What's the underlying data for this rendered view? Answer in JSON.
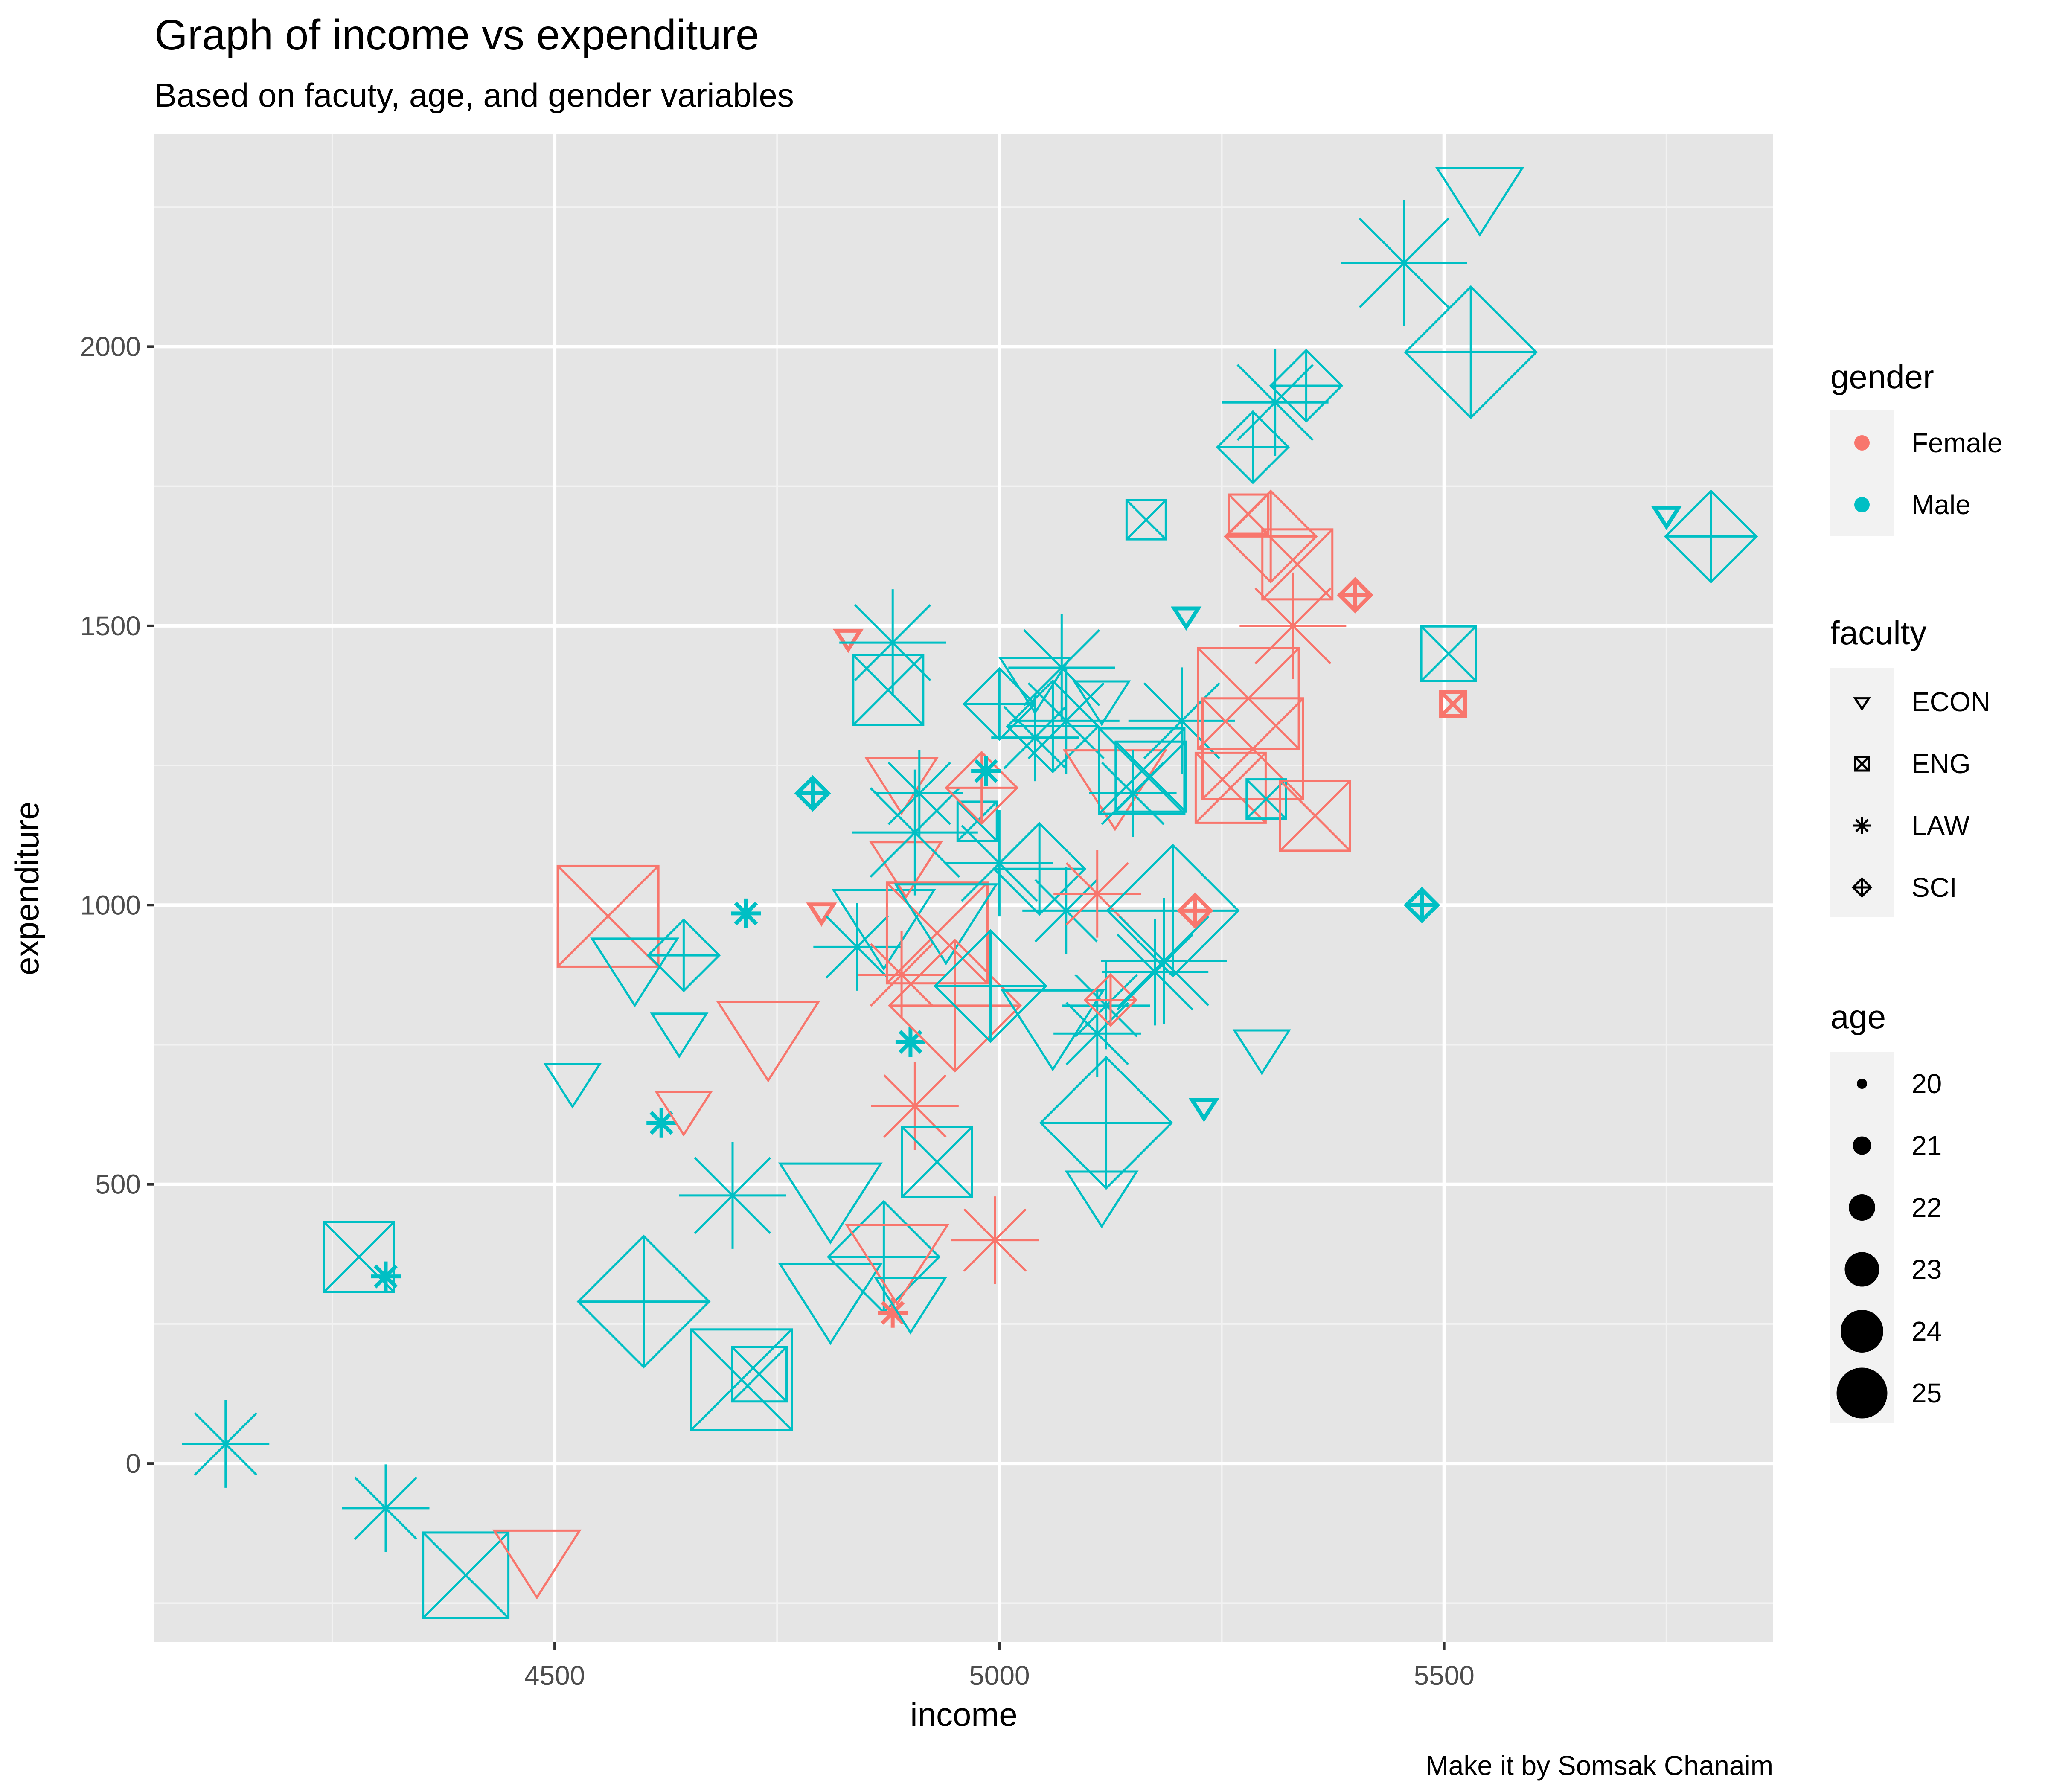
{
  "chart_data": {
    "type": "scatter",
    "title": "Graph of income vs expenditure",
    "subtitle": "Based on facuty, age, and gender variables",
    "xlabel": "income",
    "ylabel": "expenditure",
    "caption": "Make it by Somsak Chanaim",
    "xlim": [
      4050,
      5870
    ],
    "ylim": [
      -320,
      2380
    ],
    "xticks": [
      4500,
      5000,
      5500
    ],
    "yticks": [
      0,
      500,
      1000,
      1500,
      2000
    ],
    "grid": true,
    "legend_position": "right",
    "colors": {
      "Female": "#F8766D",
      "Male": "#00BFC4",
      "panel": "#E5E5E5",
      "gridMajor": "#FFFFFF",
      "gridMinor": "#F2F2F2"
    },
    "legends": {
      "gender": {
        "title": "gender",
        "items": [
          "Female",
          "Male"
        ]
      },
      "faculty": {
        "title": "faculty",
        "items": [
          "ECON",
          "ENG",
          "LAW",
          "SCI"
        ]
      },
      "age": {
        "title": "age",
        "items": [
          20,
          21,
          22,
          23,
          24,
          25
        ]
      }
    },
    "points": [
      {
        "x": 4130,
        "y": 35,
        "faculty": "LAW",
        "gender": "Male",
        "age": 23
      },
      {
        "x": 4310,
        "y": -80,
        "faculty": "LAW",
        "gender": "Male",
        "age": 23
      },
      {
        "x": 4310,
        "y": 335,
        "faculty": "LAW",
        "gender": "Male",
        "age": 20
      },
      {
        "x": 4280,
        "y": 370,
        "faculty": "ENG",
        "gender": "Male",
        "age": 23
      },
      {
        "x": 4400,
        "y": -200,
        "faculty": "ENG",
        "gender": "Male",
        "age": 24
      },
      {
        "x": 4480,
        "y": -160,
        "faculty": "ECON",
        "gender": "Female",
        "age": 24
      },
      {
        "x": 4520,
        "y": 690,
        "faculty": "ECON",
        "gender": "Male",
        "age": 22
      },
      {
        "x": 4560,
        "y": 980,
        "faculty": "ENG",
        "gender": "Female",
        "age": 25
      },
      {
        "x": 4590,
        "y": 900,
        "faculty": "ECON",
        "gender": "Male",
        "age": 24
      },
      {
        "x": 4600,
        "y": 290,
        "faculty": "SCI",
        "gender": "Male",
        "age": 25
      },
      {
        "x": 4620,
        "y": 610,
        "faculty": "LAW",
        "gender": "Male",
        "age": 20
      },
      {
        "x": 4640,
        "y": 780,
        "faculty": "ECON",
        "gender": "Male",
        "age": 22
      },
      {
        "x": 4645,
        "y": 640,
        "faculty": "ECON",
        "gender": "Female",
        "age": 22
      },
      {
        "x": 4645,
        "y": 910,
        "faculty": "SCI",
        "gender": "Male",
        "age": 22
      },
      {
        "x": 4700,
        "y": 480,
        "faculty": "LAW",
        "gender": "Male",
        "age": 24
      },
      {
        "x": 4710,
        "y": 150,
        "faculty": "ENG",
        "gender": "Male",
        "age": 25
      },
      {
        "x": 4715,
        "y": 985,
        "faculty": "LAW",
        "gender": "Male",
        "age": 20
      },
      {
        "x": 4730,
        "y": 160,
        "faculty": "ENG",
        "gender": "Male",
        "age": 22
      },
      {
        "x": 4740,
        "y": 780,
        "faculty": "ECON",
        "gender": "Female",
        "age": 25
      },
      {
        "x": 4790,
        "y": 1200,
        "faculty": "SCI",
        "gender": "Male",
        "age": 20
      },
      {
        "x": 4800,
        "y": 990,
        "faculty": "ECON",
        "gender": "Female",
        "age": 20
      },
      {
        "x": 4810,
        "y": 310,
        "faculty": "ECON",
        "gender": "Male",
        "age": 25
      },
      {
        "x": 4810,
        "y": 490,
        "faculty": "ECON",
        "gender": "Male",
        "age": 25
      },
      {
        "x": 4830,
        "y": 1480,
        "faculty": "ECON",
        "gender": "Female",
        "age": 20
      },
      {
        "x": 4840,
        "y": 925,
        "faculty": "LAW",
        "gender": "Male",
        "age": 23
      },
      {
        "x": 4870,
        "y": 980,
        "faculty": "ECON",
        "gender": "Male",
        "age": 25
      },
      {
        "x": 4870,
        "y": 370,
        "faculty": "SCI",
        "gender": "Male",
        "age": 24
      },
      {
        "x": 4875,
        "y": 1385,
        "faculty": "ENG",
        "gender": "Male",
        "age": 23
      },
      {
        "x": 4880,
        "y": 1470,
        "faculty": "LAW",
        "gender": "Male",
        "age": 24
      },
      {
        "x": 4880,
        "y": 270,
        "faculty": "LAW",
        "gender": "Female",
        "age": 20
      },
      {
        "x": 4885,
        "y": 380,
        "faculty": "ECON",
        "gender": "Female",
        "age": 25
      },
      {
        "x": 4890,
        "y": 875,
        "faculty": "LAW",
        "gender": "Female",
        "age": 23
      },
      {
        "x": 4890,
        "y": 1230,
        "faculty": "ECON",
        "gender": "Female",
        "age": 23
      },
      {
        "x": 4895,
        "y": 1080,
        "faculty": "ECON",
        "gender": "Female",
        "age": 23
      },
      {
        "x": 4900,
        "y": 300,
        "faculty": "ECON",
        "gender": "Male",
        "age": 23
      },
      {
        "x": 4900,
        "y": 755,
        "faculty": "LAW",
        "gender": "Male",
        "age": 20
      },
      {
        "x": 4905,
        "y": 1130,
        "faculty": "LAW",
        "gender": "Male",
        "age": 25
      },
      {
        "x": 4905,
        "y": 640,
        "faculty": "LAW",
        "gender": "Female",
        "age": 23
      },
      {
        "x": 4910,
        "y": 1200,
        "faculty": "LAW",
        "gender": "Male",
        "age": 23
      },
      {
        "x": 4930,
        "y": 540,
        "faculty": "ENG",
        "gender": "Male",
        "age": 23
      },
      {
        "x": 4930,
        "y": 950,
        "faculty": "ENG",
        "gender": "Female",
        "age": 25
      },
      {
        "x": 4940,
        "y": 990,
        "faculty": "ECON",
        "gender": "Male",
        "age": 25
      },
      {
        "x": 4950,
        "y": 820,
        "faculty": "SCI",
        "gender": "Female",
        "age": 25
      },
      {
        "x": 4975,
        "y": 1150,
        "faculty": "ENG",
        "gender": "Male",
        "age": 21
      },
      {
        "x": 4980,
        "y": 1210,
        "faculty": "SCI",
        "gender": "Female",
        "age": 22
      },
      {
        "x": 4985,
        "y": 1240,
        "faculty": "LAW",
        "gender": "Male",
        "age": 20
      },
      {
        "x": 4990,
        "y": 855,
        "faculty": "SCI",
        "gender": "Male",
        "age": 24
      },
      {
        "x": 4995,
        "y": 400,
        "faculty": "LAW",
        "gender": "Female",
        "age": 23
      },
      {
        "x": 5000,
        "y": 1360,
        "faculty": "SCI",
        "gender": "Male",
        "age": 22
      },
      {
        "x": 5000,
        "y": 1075,
        "faculty": "LAW",
        "gender": "Male",
        "age": 24
      },
      {
        "x": 5040,
        "y": 1410,
        "faculty": "ECON",
        "gender": "Male",
        "age": 23
      },
      {
        "x": 5040,
        "y": 1300,
        "faculty": "LAW",
        "gender": "Male",
        "age": 23
      },
      {
        "x": 5045,
        "y": 1065,
        "faculty": "SCI",
        "gender": "Male",
        "age": 23
      },
      {
        "x": 5060,
        "y": 1320,
        "faculty": "SCI",
        "gender": "Male",
        "age": 23
      },
      {
        "x": 5060,
        "y": 800,
        "faculty": "ECON",
        "gender": "Male",
        "age": 25
      },
      {
        "x": 5070,
        "y": 1425,
        "faculty": "LAW",
        "gender": "Male",
        "age": 24
      },
      {
        "x": 5075,
        "y": 1330,
        "faculty": "LAW",
        "gender": "Male",
        "age": 24
      },
      {
        "x": 5075,
        "y": 990,
        "faculty": "LAW",
        "gender": "Male",
        "age": 23
      },
      {
        "x": 5110,
        "y": 770,
        "faculty": "LAW",
        "gender": "Male",
        "age": 23
      },
      {
        "x": 5110,
        "y": 1020,
        "faculty": "LAW",
        "gender": "Female",
        "age": 23
      },
      {
        "x": 5115,
        "y": 1375,
        "faculty": "ECON",
        "gender": "Male",
        "age": 22
      },
      {
        "x": 5115,
        "y": 490,
        "faculty": "ECON",
        "gender": "Male",
        "age": 23
      },
      {
        "x": 5120,
        "y": 820,
        "faculty": "LAW",
        "gender": "Male",
        "age": 23
      },
      {
        "x": 5120,
        "y": 610,
        "faculty": "SCI",
        "gender": "Male",
        "age": 25
      },
      {
        "x": 5125,
        "y": 830,
        "faculty": "SCI",
        "gender": "Female",
        "age": 21
      },
      {
        "x": 5130,
        "y": 1230,
        "faculty": "ECON",
        "gender": "Female",
        "age": 25
      },
      {
        "x": 5150,
        "y": 1200,
        "faculty": "LAW",
        "gender": "Male",
        "age": 23
      },
      {
        "x": 5160,
        "y": 1240,
        "faculty": "ENG",
        "gender": "Male",
        "age": 24
      },
      {
        "x": 5165,
        "y": 1690,
        "faculty": "ENG",
        "gender": "Male",
        "age": 21
      },
      {
        "x": 5170,
        "y": 1230,
        "faculty": "ENG",
        "gender": "Male",
        "age": 23
      },
      {
        "x": 5175,
        "y": 880,
        "faculty": "LAW",
        "gender": "Male",
        "age": 24
      },
      {
        "x": 5185,
        "y": 900,
        "faculty": "LAW",
        "gender": "Male",
        "age": 25
      },
      {
        "x": 5195,
        "y": 990,
        "faculty": "SCI",
        "gender": "Male",
        "age": 25
      },
      {
        "x": 5205,
        "y": 1330,
        "faculty": "LAW",
        "gender": "Male",
        "age": 24
      },
      {
        "x": 5210,
        "y": 1520,
        "faculty": "ECON",
        "gender": "Male",
        "age": 20
      },
      {
        "x": 5220,
        "y": 990,
        "faculty": "SCI",
        "gender": "Female",
        "age": 20
      },
      {
        "x": 5230,
        "y": 640,
        "faculty": "ECON",
        "gender": "Male",
        "age": 20
      },
      {
        "x": 5260,
        "y": 1210,
        "faculty": "ENG",
        "gender": "Female",
        "age": 23
      },
      {
        "x": 5280,
        "y": 1700,
        "faculty": "ENG",
        "gender": "Female",
        "age": 21
      },
      {
        "x": 5280,
        "y": 1370,
        "faculty": "ENG",
        "gender": "Female",
        "age": 25
      },
      {
        "x": 5285,
        "y": 1280,
        "faculty": "ENG",
        "gender": "Female",
        "age": 25
      },
      {
        "x": 5285,
        "y": 1820,
        "faculty": "SCI",
        "gender": "Male",
        "age": 22
      },
      {
        "x": 5295,
        "y": 750,
        "faculty": "ECON",
        "gender": "Male",
        "age": 22
      },
      {
        "x": 5300,
        "y": 1190,
        "faculty": "ENG",
        "gender": "Male",
        "age": 21
      },
      {
        "x": 5305,
        "y": 1660,
        "faculty": "SCI",
        "gender": "Female",
        "age": 23
      },
      {
        "x": 5310,
        "y": 1900,
        "faculty": "LAW",
        "gender": "Male",
        "age": 24
      },
      {
        "x": 5330,
        "y": 1500,
        "faculty": "LAW",
        "gender": "Female",
        "age": 24
      },
      {
        "x": 5335,
        "y": 1610,
        "faculty": "ENG",
        "gender": "Female",
        "age": 23
      },
      {
        "x": 5345,
        "y": 1930,
        "faculty": "SCI",
        "gender": "Male",
        "age": 22
      },
      {
        "x": 5355,
        "y": 1160,
        "faculty": "ENG",
        "gender": "Female",
        "age": 23
      },
      {
        "x": 5400,
        "y": 1555,
        "faculty": "SCI",
        "gender": "Female",
        "age": 20
      },
      {
        "x": 5455,
        "y": 2150,
        "faculty": "LAW",
        "gender": "Male",
        "age": 25
      },
      {
        "x": 5475,
        "y": 1000,
        "faculty": "SCI",
        "gender": "Male",
        "age": 20
      },
      {
        "x": 5505,
        "y": 1450,
        "faculty": "ENG",
        "gender": "Male",
        "age": 22
      },
      {
        "x": 5510,
        "y": 1360,
        "faculty": "ENG",
        "gender": "Female",
        "age": 20
      },
      {
        "x": 5530,
        "y": 1990,
        "faculty": "SCI",
        "gender": "Male",
        "age": 25
      },
      {
        "x": 5540,
        "y": 2280,
        "faculty": "ECON",
        "gender": "Male",
        "age": 24
      },
      {
        "x": 5750,
        "y": 1700,
        "faculty": "ECON",
        "gender": "Male",
        "age": 20
      },
      {
        "x": 5800,
        "y": 1660,
        "faculty": "SCI",
        "gender": "Male",
        "age": 23
      }
    ]
  }
}
